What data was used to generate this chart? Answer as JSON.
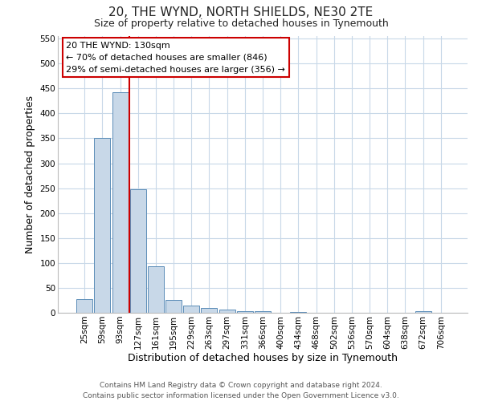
{
  "title": "20, THE WYND, NORTH SHIELDS, NE30 2TE",
  "subtitle": "Size of property relative to detached houses in Tynemouth",
  "xlabel": "Distribution of detached houses by size in Tynemouth",
  "ylabel": "Number of detached properties",
  "bar_labels": [
    "25sqm",
    "59sqm",
    "93sqm",
    "127sqm",
    "161sqm",
    "195sqm",
    "229sqm",
    "263sqm",
    "297sqm",
    "331sqm",
    "366sqm",
    "400sqm",
    "434sqm",
    "468sqm",
    "502sqm",
    "536sqm",
    "570sqm",
    "604sqm",
    "638sqm",
    "672sqm",
    "706sqm"
  ],
  "bar_values": [
    28,
    350,
    443,
    248,
    93,
    25,
    14,
    10,
    7,
    4,
    3,
    0,
    2,
    0,
    0,
    0,
    0,
    0,
    0,
    3,
    0
  ],
  "bar_color": "#c8d8e8",
  "bar_edge_color": "#5b8db8",
  "vline_color": "#cc0000",
  "annotation_title": "20 THE WYND: 130sqm",
  "annotation_line1": "← 70% of detached houses are smaller (846)",
  "annotation_line2": "29% of semi-detached houses are larger (356) →",
  "annotation_box_color": "#ffffff",
  "annotation_box_edge_color": "#cc0000",
  "ylim": [
    0,
    555
  ],
  "yticks": [
    0,
    50,
    100,
    150,
    200,
    250,
    300,
    350,
    400,
    450,
    500,
    550
  ],
  "footer_line1": "Contains HM Land Registry data © Crown copyright and database right 2024.",
  "footer_line2": "Contains public sector information licensed under the Open Government Licence v3.0.",
  "bg_color": "#ffffff",
  "grid_color": "#c8d8e8",
  "title_fontsize": 11,
  "subtitle_fontsize": 9,
  "axis_label_fontsize": 9,
  "tick_fontsize": 7.5,
  "footer_fontsize": 6.5,
  "annot_fontsize": 8
}
